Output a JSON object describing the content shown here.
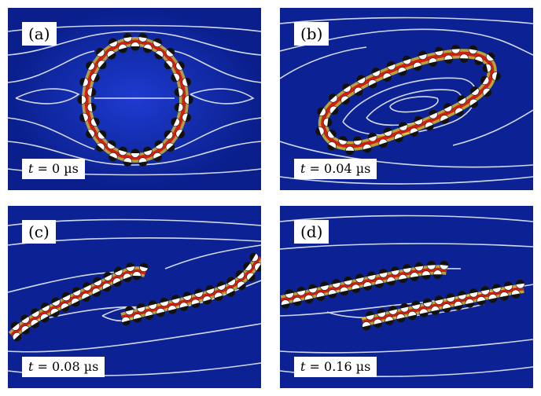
{
  "panels": [
    {
      "tag": "(a)",
      "time_var": "t",
      "time_rest": " = 0 µs"
    },
    {
      "tag": "(b)",
      "time_var": "t",
      "time_rest": " = 0.04 µs"
    },
    {
      "tag": "(c)",
      "time_var": "t",
      "time_rest": " = 0.08 µs"
    },
    {
      "tag": "(d)",
      "time_var": "t",
      "time_rest": " = 0.16 µs"
    }
  ],
  "colors": {
    "background": "#0a1f8c",
    "streamline": "#e8ecf6",
    "chain_core": "#d21f10",
    "chain_glow": "#f2d21b",
    "particle_fill": "#ffffff",
    "particle_cap": "#111111"
  }
}
